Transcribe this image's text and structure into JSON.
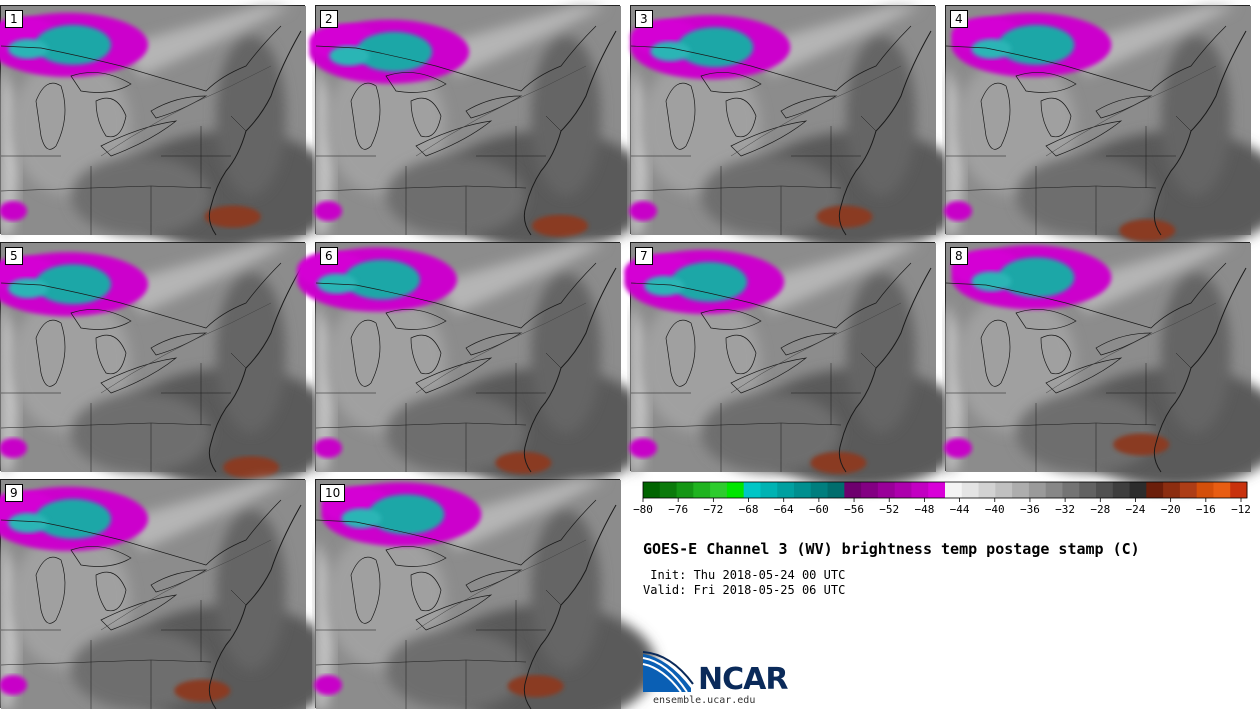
{
  "panels": [
    {
      "label": "1",
      "blob_x": 0.22,
      "blob_y": 0.17,
      "warm_x": 0.76,
      "warm_y": 0.92
    },
    {
      "label": "2",
      "blob_x": 0.24,
      "blob_y": 0.2,
      "warm_x": 0.8,
      "warm_y": 0.96
    },
    {
      "label": "3",
      "blob_x": 0.26,
      "blob_y": 0.18,
      "warm_x": 0.7,
      "warm_y": 0.92
    },
    {
      "label": "4",
      "blob_x": 0.28,
      "blob_y": 0.17,
      "warm_x": 0.66,
      "warm_y": 0.98
    },
    {
      "label": "5",
      "blob_x": 0.22,
      "blob_y": 0.18,
      "warm_x": 0.82,
      "warm_y": 0.98
    },
    {
      "label": "6",
      "blob_x": 0.2,
      "blob_y": 0.16,
      "warm_x": 0.68,
      "warm_y": 0.96
    },
    {
      "label": "7",
      "blob_x": 0.24,
      "blob_y": 0.17,
      "warm_x": 0.68,
      "warm_y": 0.96
    },
    {
      "label": "8",
      "blob_x": 0.28,
      "blob_y": 0.15,
      "warm_x": 0.64,
      "warm_y": 0.88
    },
    {
      "label": "9",
      "blob_x": 0.22,
      "blob_y": 0.17,
      "warm_x": 0.66,
      "warm_y": 0.92
    },
    {
      "label": "10",
      "blob_x": 0.28,
      "blob_y": 0.15,
      "warm_x": 0.72,
      "warm_y": 0.9
    }
  ],
  "colorbar": {
    "ticks": [
      "-80",
      "-76",
      "-72",
      "-68",
      "-64",
      "-60",
      "-56",
      "-52",
      "-48",
      "-44",
      "-40",
      "-36",
      "-32",
      "-28",
      "-24",
      "-20",
      "-16",
      "-12"
    ],
    "colors": [
      "#006400",
      "#0b7a0b",
      "#149614",
      "#1fb31f",
      "#2ecc2e",
      "#00e600",
      "#00c6c6",
      "#00b3b3",
      "#00a0a0",
      "#008f8f",
      "#007e7e",
      "#006d6d",
      "#6e006e",
      "#830083",
      "#990099",
      "#ad00ad",
      "#c200c2",
      "#d800d8",
      "#f4f4f4",
      "#e4e4e4",
      "#d2d2d2",
      "#c0c0c0",
      "#adadad",
      "#9a9a9a",
      "#878787",
      "#747474",
      "#626262",
      "#505050",
      "#3e3e3e",
      "#2c2c2c",
      "#6b1e0a",
      "#8c2d10",
      "#ad3d16",
      "#d44f0a",
      "#e85d12",
      "#c8310d"
    ]
  },
  "title": "GOES-E Channel 3 (WV) brightness temp postage stamp (C)",
  "init_line": " Init: Thu 2018-05-24 00 UTC",
  "valid_line": "Valid: Fri 2018-05-25 06 UTC",
  "logo_text": "NCAR",
  "url": "ensemble.ucar.edu"
}
